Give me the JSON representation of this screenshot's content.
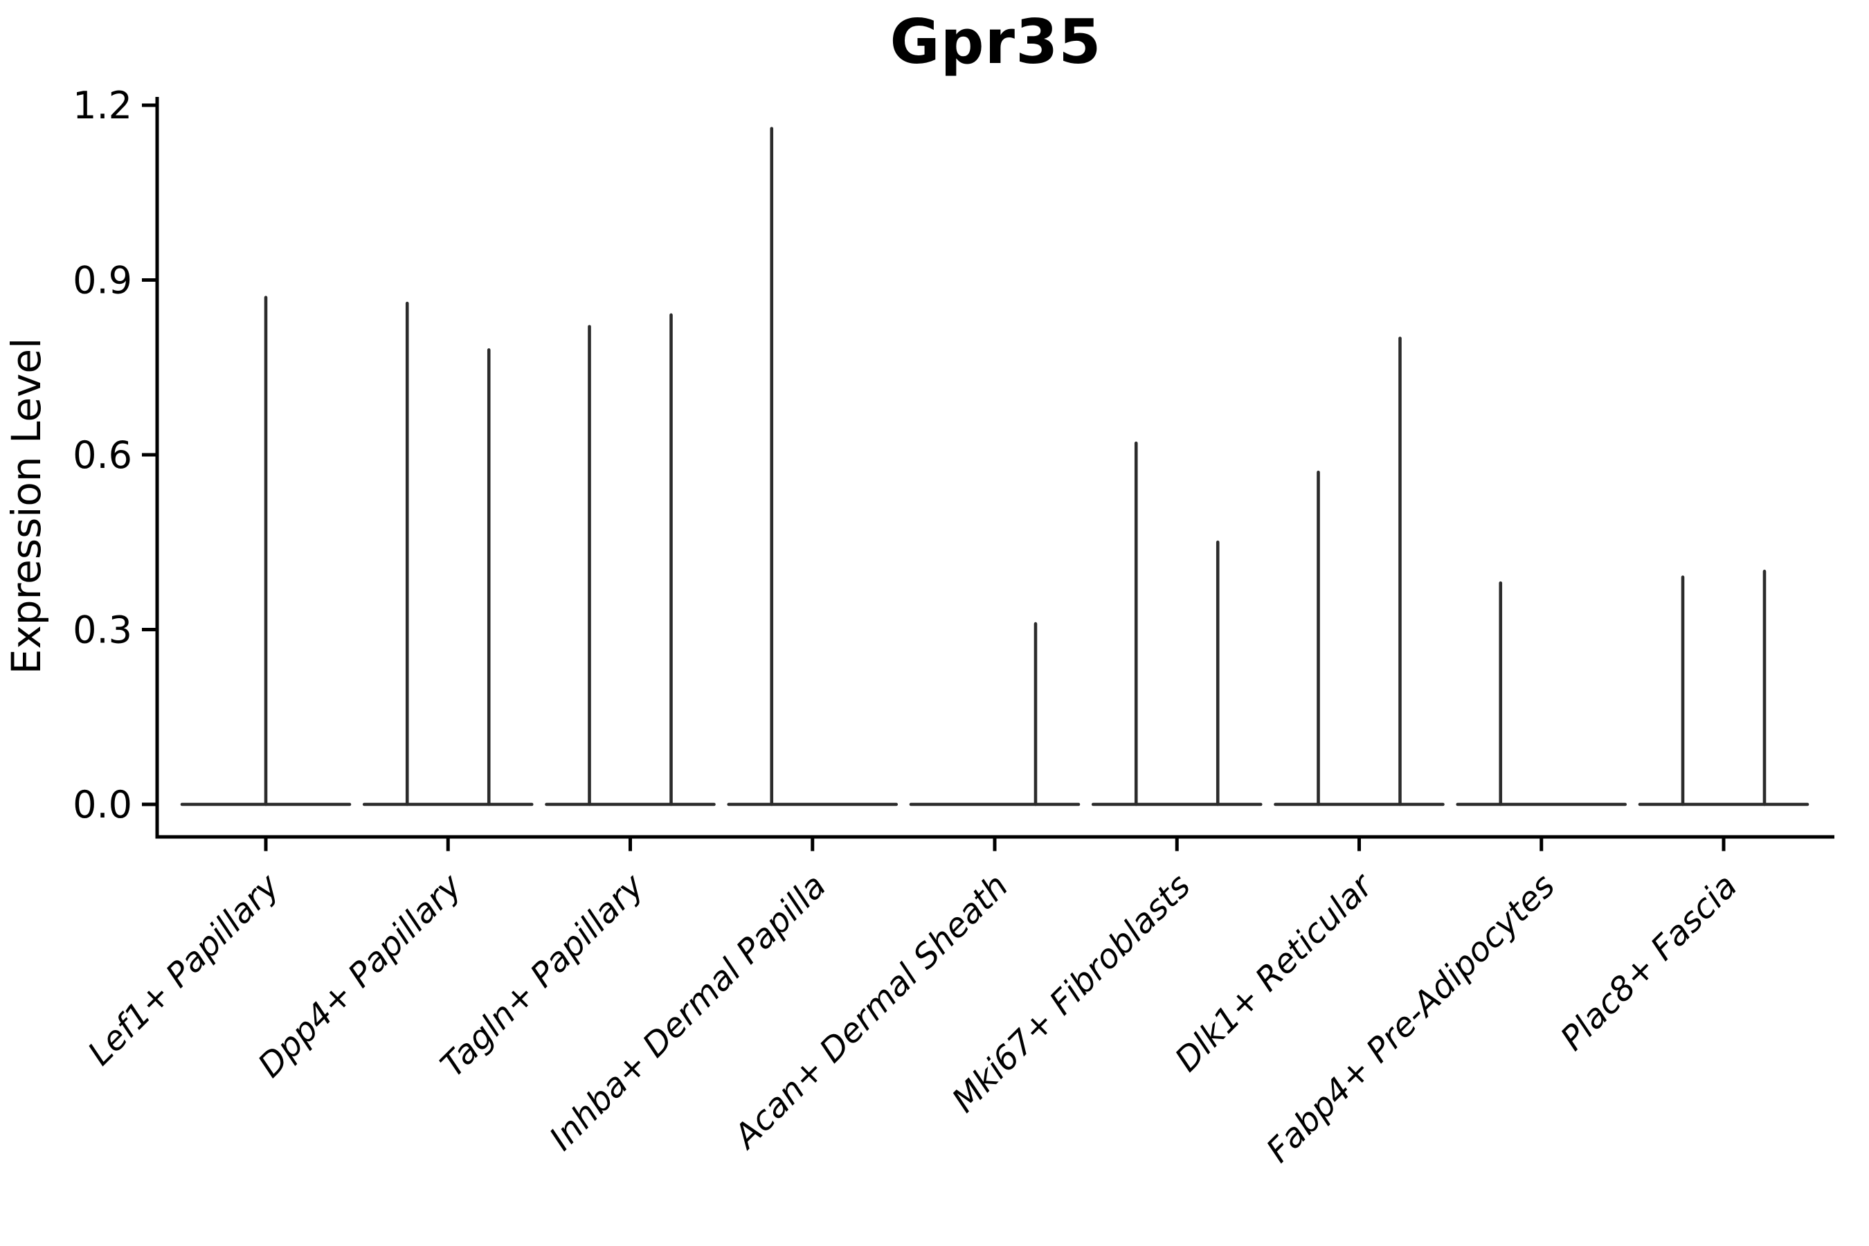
{
  "figure": {
    "background": "#ffffff"
  },
  "chart_data": {
    "type": "violin",
    "title": "Gpr35",
    "xlabel": "",
    "ylabel": "Expression Level",
    "ylim": [
      -0.06,
      1.25
    ],
    "grid": false,
    "legend": "none",
    "line_color": "#2b2b2b",
    "axis_color": "#000000",
    "yticks": [
      {
        "value": 0.0,
        "label": "0.0"
      },
      {
        "value": 0.3,
        "label": "0.3"
      },
      {
        "value": 0.6,
        "label": "0.6"
      },
      {
        "value": 0.9,
        "label": "0.9"
      },
      {
        "value": 1.2,
        "label": "1.2"
      }
    ],
    "categories": [
      "Lef1+ Papillary",
      "Dpp4+ Papillary",
      "Tagln+ Papillary",
      "Inhba+ Dermal Papilla",
      "Acan+ Dermal Sheath",
      "Mki67+ Fibroblasts",
      "Dlk1+ Reticular",
      "Fabp4+ Pre-Adipocytes",
      "Plac8+ Fascia"
    ],
    "violins": [
      {
        "category": "Lef1+ Papillary",
        "spikes": [
          {
            "position": "center",
            "value": 0.87
          }
        ]
      },
      {
        "category": "Dpp4+ Papillary",
        "spikes": [
          {
            "position": "left",
            "value": 0.86
          },
          {
            "position": "right",
            "value": 0.78
          }
        ]
      },
      {
        "category": "Tagln+ Papillary",
        "spikes": [
          {
            "position": "left",
            "value": 0.82
          },
          {
            "position": "right",
            "value": 0.84
          }
        ]
      },
      {
        "category": "Inhba+ Dermal Papilla",
        "spikes": [
          {
            "position": "left",
            "value": 1.16
          }
        ]
      },
      {
        "category": "Acan+ Dermal Sheath",
        "spikes": [
          {
            "position": "right",
            "value": 0.31
          }
        ]
      },
      {
        "category": "Mki67+ Fibroblasts",
        "spikes": [
          {
            "position": "left",
            "value": 0.62
          },
          {
            "position": "right",
            "value": 0.45
          }
        ]
      },
      {
        "category": "Dlk1+ Reticular",
        "spikes": [
          {
            "position": "left",
            "value": 0.57
          },
          {
            "position": "right",
            "value": 0.8
          }
        ]
      },
      {
        "category": "Fabp4+ Pre-Adipocytes",
        "spikes": [
          {
            "position": "left",
            "value": 0.38
          }
        ]
      },
      {
        "category": "Plac8+ Fascia",
        "spikes": [
          {
            "position": "left",
            "value": 0.39
          },
          {
            "position": "right",
            "value": 0.4
          }
        ]
      }
    ]
  }
}
